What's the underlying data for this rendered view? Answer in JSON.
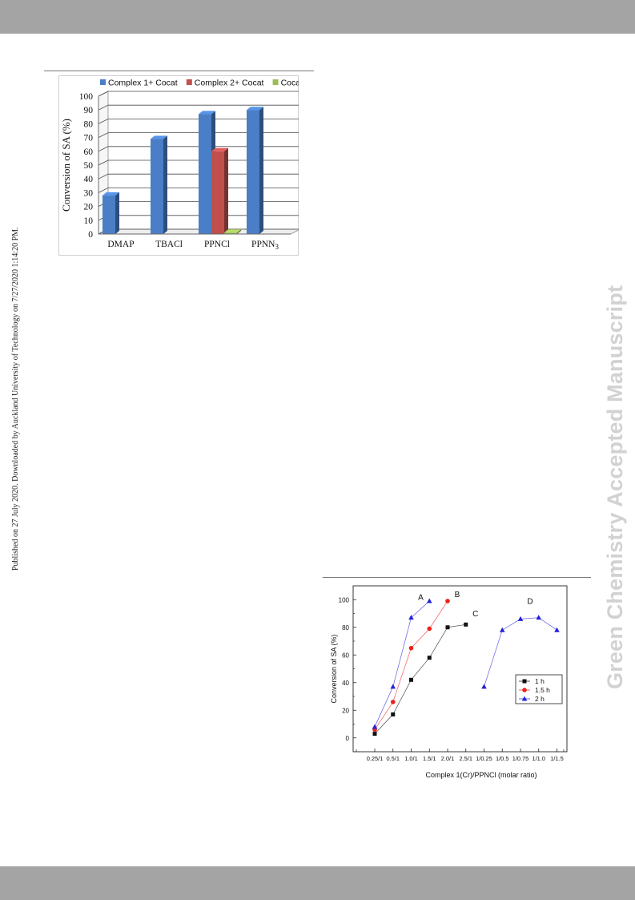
{
  "sidebar_text": "Published on 27 July 2020. Downloaded by Auckland University of Technology on 7/27/2020 1:14:20 PM.",
  "watermark_text": "Green Chemistry Accepted Manuscript",
  "chart_data": [
    {
      "type": "bar",
      "title": "",
      "xlabel": "",
      "ylabel": "Conversion of SA (%)",
      "ylim": [
        0,
        100
      ],
      "yticks": [
        "0",
        "10",
        "20",
        "30",
        "40",
        "50",
        "60",
        "70",
        "80",
        "90",
        "100"
      ],
      "grid": true,
      "legend_position": "top",
      "categories": [
        "DMAP",
        "TBACl",
        "PPNCl",
        "PPNN"
      ],
      "category_subscripts": [
        "",
        "",
        "",
        "3"
      ],
      "series": [
        {
          "name": "Complex 1+ Cocat",
          "color": "#4a7ec6",
          "values": [
            28,
            69,
            87,
            90
          ]
        },
        {
          "name": "Complex 2+ Cocat",
          "color": "#c0504d",
          "values": [
            0,
            0,
            60,
            0
          ]
        },
        {
          "name": "Cocat",
          "color": "#9bbb59",
          "values": [
            0,
            0,
            1,
            0
          ]
        }
      ]
    },
    {
      "type": "scatter",
      "title": "",
      "xlabel": "Complex 1(Cr)/PPNCl (molar ratio)",
      "ylabel": "Conversion of SA (%)",
      "ylim": [
        -10,
        110
      ],
      "yticks": [
        "0",
        "20",
        "40",
        "60",
        "80",
        "100"
      ],
      "x_categories": [
        "0.25/1",
        "0.5/1",
        "1.0/1",
        "1.5/1",
        "2.0/1",
        "2.5/1",
        "1/0.25",
        "1/0.5",
        "1/0.75",
        "1/1.0",
        "1/1.5"
      ],
      "legend_position": "right",
      "series": [
        {
          "name": "1 h",
          "color": "#111111",
          "marker": "square",
          "points": [
            [
              "0.25/1",
              3
            ],
            [
              "0.5/1",
              17
            ],
            [
              "1.0/1",
              42
            ],
            [
              "1.5/1",
              58
            ],
            [
              "2.0/1",
              80
            ],
            [
              "2.5/1",
              82
            ]
          ]
        },
        {
          "name": "1.5 h",
          "color": "#e8231c",
          "marker": "circle",
          "points": [
            [
              "0.25/1",
              6
            ],
            [
              "0.5/1",
              26
            ],
            [
              "1.0/1",
              65
            ],
            [
              "1.5/1",
              79
            ],
            [
              "2.0/1",
              99
            ]
          ]
        },
        {
          "name": "2 h",
          "color": "#2323d8",
          "marker": "triangle",
          "points": [
            [
              "0.25/1",
              8
            ],
            [
              "0.5/1",
              37
            ],
            [
              "1.0/1",
              87
            ],
            [
              "1.5/1",
              99
            ]
          ]
        },
        {
          "name": "",
          "color": "#2323d8",
          "marker": "triangle",
          "points": [
            [
              "1/0.25",
              37
            ],
            [
              "1/0.5",
              78
            ],
            [
              "1/0.75",
              86
            ],
            [
              "1/1.0",
              87
            ],
            [
              "1/1.5",
              78
            ]
          ]
        }
      ],
      "annotations": [
        {
          "text": "A",
          "x": "1.0/1",
          "y": 100
        },
        {
          "text": "B",
          "x": "2.0/1",
          "y": 102
        },
        {
          "text": "C",
          "x": "2.5/1",
          "y": 88
        },
        {
          "text": "D",
          "x": "1/0.75",
          "y": 97
        }
      ]
    }
  ]
}
